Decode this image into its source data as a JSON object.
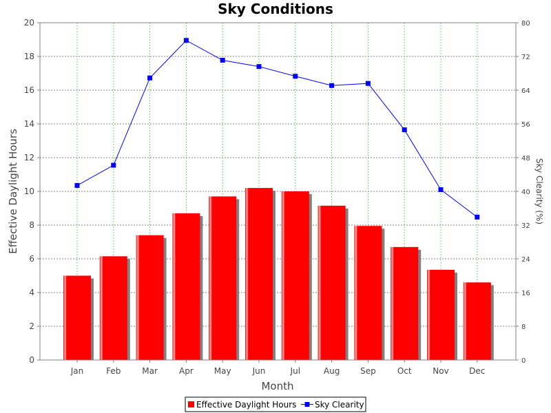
{
  "chart_data": {
    "type": "bar",
    "title": "Sky Conditions",
    "xlabel": "Month",
    "ylabel": "Effective Daylight Hours",
    "y2label": "Sky Clearity (%)",
    "ylim": [
      0,
      20
    ],
    "y2lim": [
      0,
      80
    ],
    "yticks": [
      0,
      2,
      4,
      6,
      8,
      10,
      12,
      14,
      16,
      18,
      20
    ],
    "y2ticks": [
      0,
      8,
      16,
      24,
      32,
      40,
      48,
      56,
      64,
      72,
      80
    ],
    "grid": true,
    "legend_position": "bottom",
    "categories": [
      "Jan",
      "Feb",
      "Mar",
      "Apr",
      "May",
      "Jun",
      "Jul",
      "Aug",
      "Sep",
      "Oct",
      "Nov",
      "Dec"
    ],
    "series": [
      {
        "name": "Effective Daylight Hours",
        "type": "bar",
        "axis": "left",
        "color": "#ff0000",
        "values": [
          5.0,
          6.15,
          7.4,
          8.7,
          9.7,
          10.2,
          10.0,
          9.15,
          7.95,
          6.7,
          5.35,
          4.6
        ]
      },
      {
        "name": "Sky Clearity",
        "type": "line",
        "axis": "right",
        "color": "#0000ff",
        "values": [
          41.4,
          46.2,
          66.9,
          75.8,
          71.1,
          69.6,
          67.3,
          65.1,
          65.6,
          54.6,
          40.4,
          33.9
        ]
      }
    ]
  }
}
